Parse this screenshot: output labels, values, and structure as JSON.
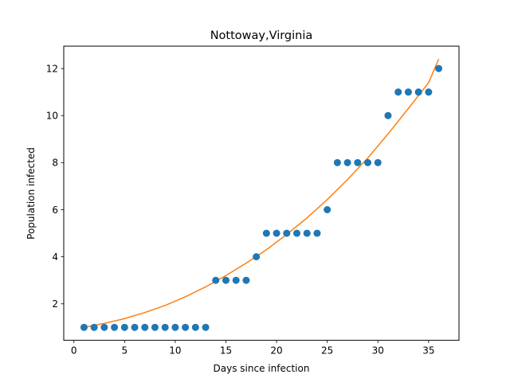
{
  "chart_data": {
    "type": "scatter",
    "title": "Nottoway,Virginia",
    "xlabel": "Days since infection",
    "ylabel": "Population infected",
    "xlim": [
      -1,
      38
    ],
    "ylim": [
      0.45,
      12.95
    ],
    "xticks": [
      0,
      5,
      10,
      15,
      20,
      25,
      30,
      35
    ],
    "yticks": [
      2,
      4,
      6,
      8,
      10,
      12
    ],
    "grid": false,
    "colors": {
      "points": "#1f77b4",
      "fit": "#ff7f0e"
    },
    "series": [
      {
        "kind": "scatter",
        "x": [
          1,
          2,
          3,
          4,
          5,
          6,
          7,
          8,
          9,
          10,
          11,
          12,
          13,
          14,
          15,
          16,
          17,
          18,
          19,
          20,
          21,
          22,
          23,
          24,
          25,
          26,
          27,
          28,
          29,
          30,
          31,
          32,
          33,
          34,
          35,
          36
        ],
        "y": [
          1,
          1,
          1,
          1,
          1,
          1,
          1,
          1,
          1,
          1,
          1,
          1,
          1,
          3,
          3,
          3,
          3,
          4,
          5,
          5,
          5,
          5,
          5,
          5,
          6,
          8,
          8,
          8,
          8,
          8,
          10,
          11,
          11,
          11,
          11,
          12
        ]
      },
      {
        "kind": "line",
        "x": [
          1,
          3,
          5,
          7,
          9,
          11,
          13,
          15,
          17,
          19,
          21,
          23,
          25,
          27,
          29,
          31,
          33,
          35,
          36
        ],
        "y": [
          1.0,
          1.17,
          1.37,
          1.63,
          1.93,
          2.3,
          2.72,
          3.2,
          3.73,
          4.3,
          4.95,
          5.65,
          6.43,
          7.28,
          8.2,
          9.22,
          10.3,
          11.4,
          12.4
        ]
      }
    ]
  }
}
